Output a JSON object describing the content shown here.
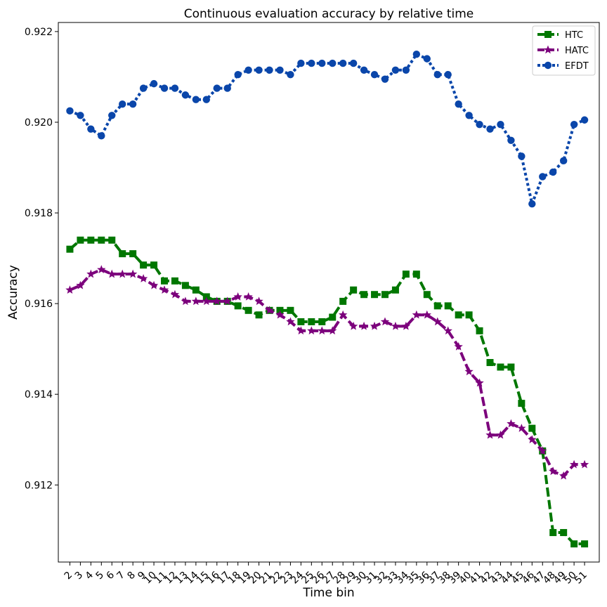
{
  "chart_data": {
    "type": "line",
    "title": "Continuous evaluation accuracy by relative time",
    "xlabel": "Time bin",
    "ylabel": "Accuracy",
    "x": [
      2,
      3,
      4,
      5,
      6,
      7,
      8,
      9,
      10,
      11,
      12,
      13,
      14,
      15,
      16,
      17,
      18,
      19,
      20,
      21,
      22,
      23,
      24,
      25,
      26,
      27,
      28,
      29,
      30,
      31,
      32,
      33,
      34,
      35,
      36,
      37,
      38,
      39,
      40,
      41,
      42,
      43,
      44,
      45,
      46,
      47,
      48,
      49,
      50,
      51
    ],
    "xlim": [
      0.9,
      52.4
    ],
    "ylim": [
      0.9103,
      0.9222
    ],
    "yticks": [
      0.912,
      0.914,
      0.916,
      0.918,
      0.92,
      0.922
    ],
    "ytick_labels": [
      "0.912",
      "0.914",
      "0.916",
      "0.918",
      "0.920",
      "0.922"
    ],
    "grid": false,
    "legend_position": "top-right",
    "series": [
      {
        "name": "HTC",
        "color": "#007700",
        "marker": "square",
        "linestyle": "dashed",
        "values": [
          0.9172,
          0.9174,
          0.9174,
          0.9174,
          0.9174,
          0.9171,
          0.9171,
          0.91685,
          0.91685,
          0.9165,
          0.9165,
          0.9164,
          0.9163,
          0.91615,
          0.91605,
          0.91605,
          0.91595,
          0.91585,
          0.91575,
          0.91585,
          0.91585,
          0.91585,
          0.9156,
          0.9156,
          0.9156,
          0.9157,
          0.91605,
          0.9163,
          0.9162,
          0.9162,
          0.9162,
          0.9163,
          0.91665,
          0.91665,
          0.9162,
          0.91595,
          0.91595,
          0.91575,
          0.91575,
          0.9154,
          0.9147,
          0.9146,
          0.9146,
          0.9138,
          0.91325,
          0.91275,
          0.91095,
          0.91095,
          0.9107,
          0.9107
        ]
      },
      {
        "name": "HATC",
        "color": "#7c007c",
        "marker": "star",
        "linestyle": "dashed",
        "values": [
          0.9163,
          0.9164,
          0.91665,
          0.91675,
          0.91665,
          0.91665,
          0.91665,
          0.91655,
          0.9164,
          0.9163,
          0.9162,
          0.91605,
          0.91605,
          0.91605,
          0.91605,
          0.91605,
          0.91615,
          0.91615,
          0.91605,
          0.91585,
          0.91575,
          0.9156,
          0.9154,
          0.9154,
          0.9154,
          0.9154,
          0.91575,
          0.9155,
          0.9155,
          0.9155,
          0.9156,
          0.9155,
          0.9155,
          0.91575,
          0.91575,
          0.9156,
          0.9154,
          0.91505,
          0.9145,
          0.91425,
          0.9131,
          0.9131,
          0.91335,
          0.91325,
          0.913,
          0.91275,
          0.9123,
          0.9122,
          0.91245,
          0.91245
        ]
      },
      {
        "name": "EFDT",
        "color": "#0a46aa",
        "marker": "circle",
        "linestyle": "dotted",
        "values": [
          0.92025,
          0.92015,
          0.91985,
          0.9197,
          0.92015,
          0.9204,
          0.9204,
          0.92075,
          0.92085,
          0.92075,
          0.92075,
          0.9206,
          0.9205,
          0.9205,
          0.92075,
          0.92075,
          0.92105,
          0.92115,
          0.92115,
          0.92115,
          0.92115,
          0.92105,
          0.9213,
          0.9213,
          0.9213,
          0.9213,
          0.9213,
          0.9213,
          0.92115,
          0.92105,
          0.92095,
          0.92115,
          0.92115,
          0.9215,
          0.9214,
          0.92105,
          0.92105,
          0.9204,
          0.92015,
          0.91995,
          0.91985,
          0.91995,
          0.9196,
          0.91925,
          0.9182,
          0.9188,
          0.9189,
          0.91915,
          0.91995,
          0.92005
        ]
      }
    ]
  }
}
